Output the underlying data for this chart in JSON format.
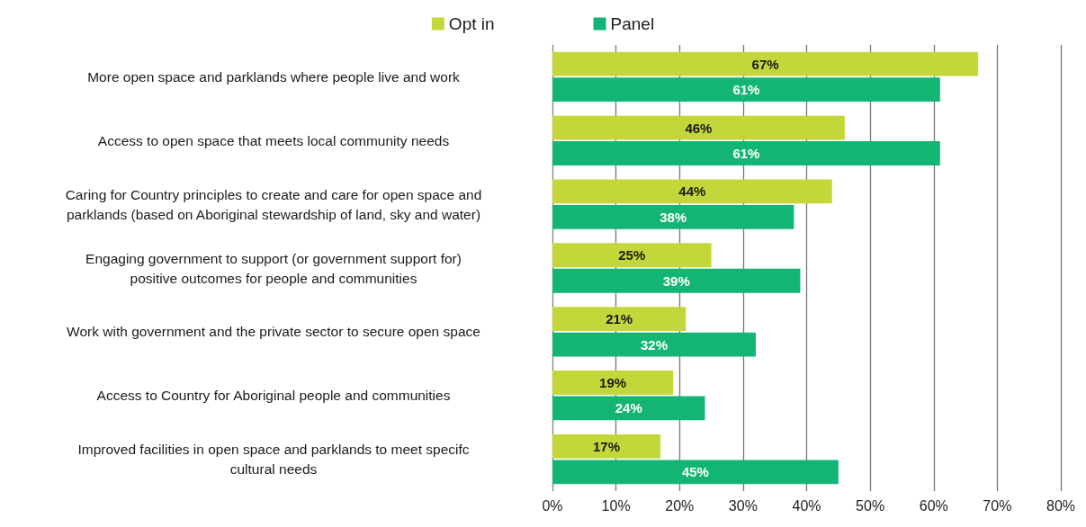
{
  "chart_data": {
    "type": "bar",
    "orientation": "horizontal",
    "categories": [
      "More open space and parklands where people live and work",
      "Access to open space that meets local community needs",
      "Caring for Country principles to create and care for open space and\nparklands (based on Aboriginal stewardship of land, sky and water)",
      "Engaging government to support (or government support for)\npositive outcomes for people and communities",
      "Work with government and the private sector to secure open space",
      "Access to Country for Aboriginal people and communities",
      "Improved facilities in open space and parklands to meet specifc\ncultural needs"
    ],
    "series": [
      {
        "name": "Opt in",
        "color": "#c4d73a",
        "values": [
          67,
          46,
          44,
          25,
          21,
          19,
          17
        ],
        "value_labels": [
          "67%",
          "46%",
          "44%",
          "25%",
          "21%",
          "19%",
          "17%"
        ]
      },
      {
        "name": "Panel",
        "color": "#13b574",
        "values": [
          61,
          61,
          38,
          39,
          32,
          24,
          45
        ],
        "value_labels": [
          "61%",
          "61%",
          "38%",
          "39%",
          "32%",
          "24%",
          "45%"
        ]
      }
    ],
    "xlim": [
      0,
      80
    ],
    "xticks": [
      {
        "value": 0,
        "label": "0%"
      },
      {
        "value": 10,
        "label": "10%"
      },
      {
        "value": 20,
        "label": "20%"
      },
      {
        "value": 30,
        "label": "30%"
      },
      {
        "value": 40,
        "label": "40%"
      },
      {
        "value": 50,
        "label": "50%"
      },
      {
        "value": 60,
        "label": "60%"
      },
      {
        "value": 70,
        "label": "70%"
      },
      {
        "value": 80,
        "label": "80%"
      }
    ],
    "grid": "x",
    "legend": "top"
  }
}
